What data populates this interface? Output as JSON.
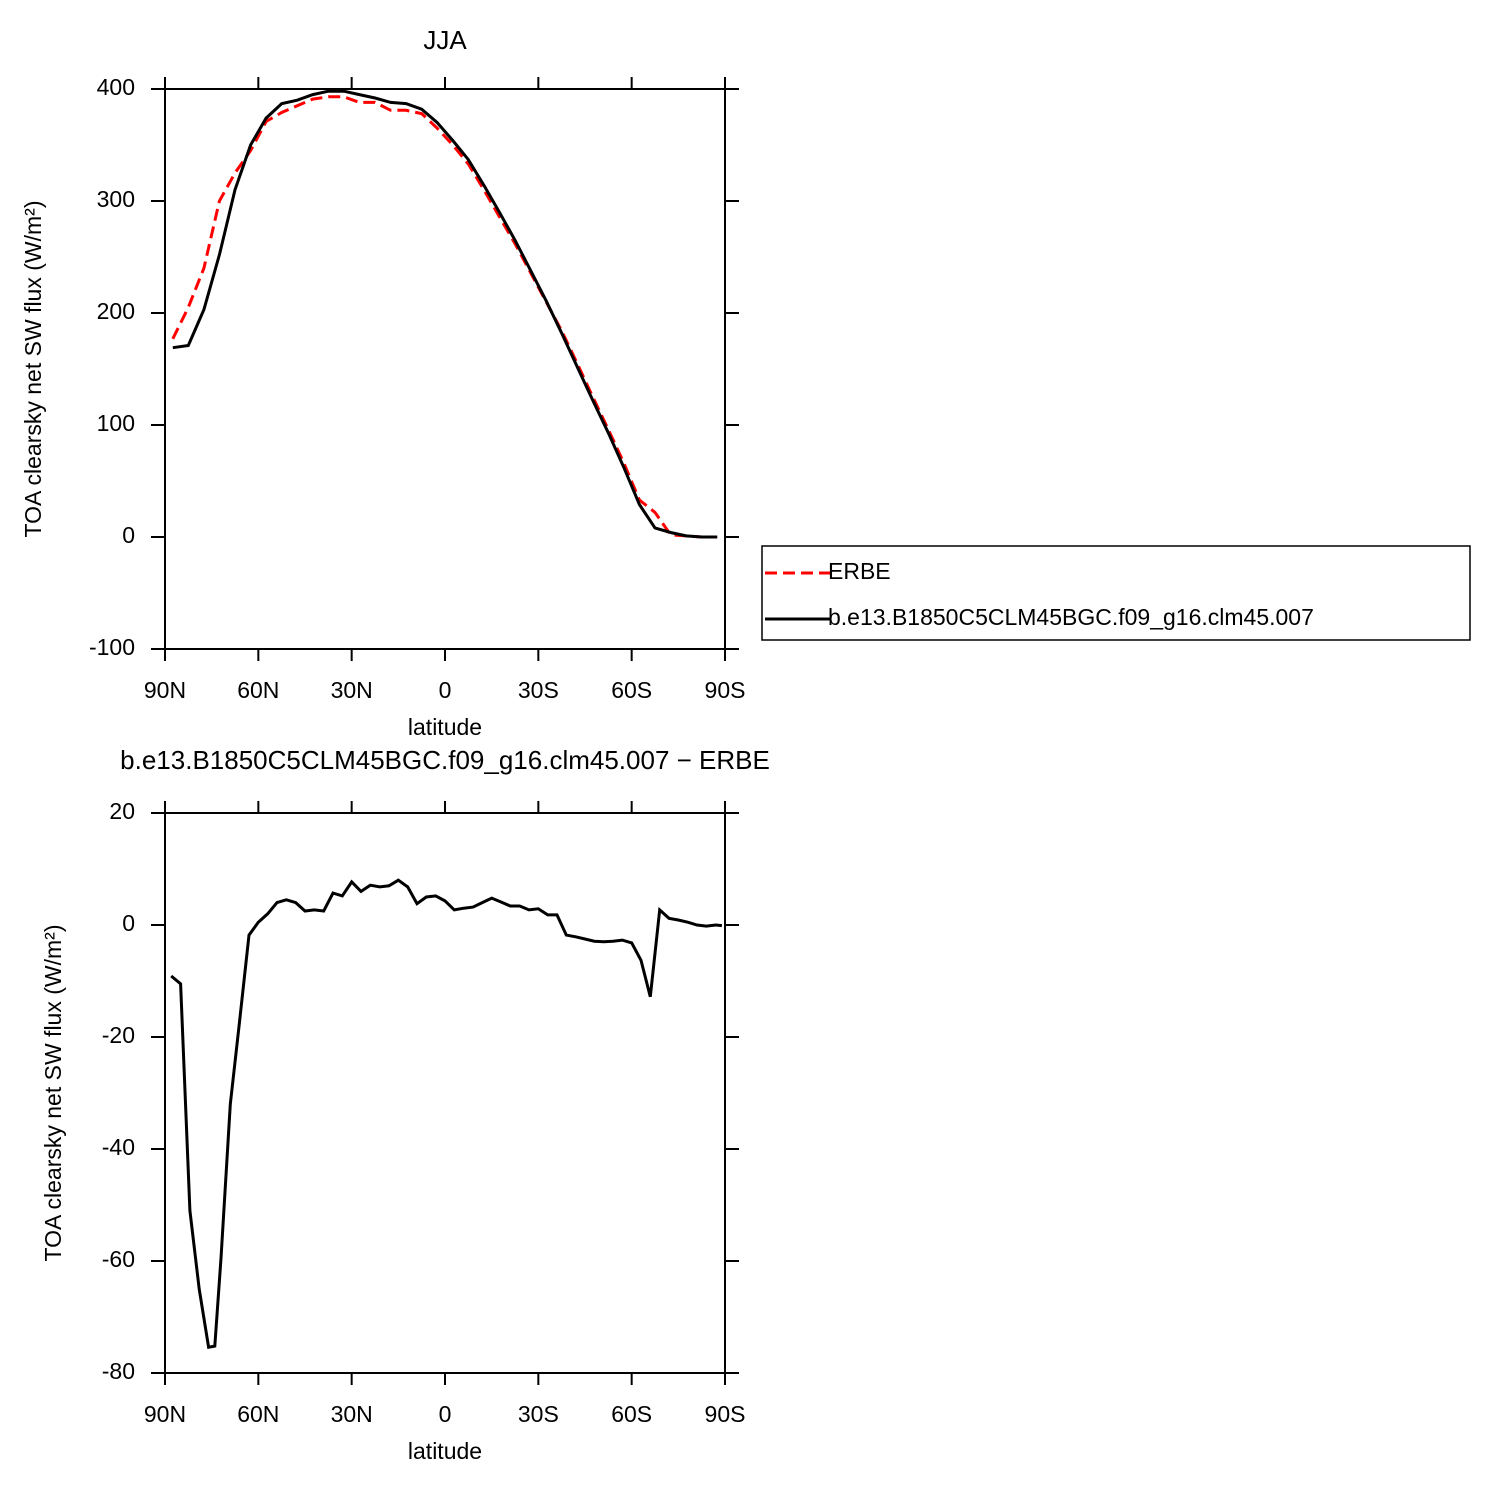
{
  "chart_data": [
    {
      "type": "line",
      "title": "JJA",
      "xlabel": "latitude",
      "ylabel": "TOA clearsky net SW flux (W/m²)",
      "xlim": [
        90,
        -90
      ],
      "xticks": [
        {
          "value": 90,
          "label": "90N"
        },
        {
          "value": 60,
          "label": "60N"
        },
        {
          "value": 30,
          "label": "30N"
        },
        0,
        {
          "value": -30,
          "label": "30S"
        },
        {
          "value": -60,
          "label": "60S"
        },
        {
          "value": -90,
          "label": "90S"
        }
      ],
      "ylim": [
        -100,
        400
      ],
      "yticks": [
        -100,
        0,
        100,
        200,
        300,
        400
      ],
      "legend": "right",
      "x": [
        87.5,
        82.5,
        77.5,
        72.5,
        67.5,
        62.5,
        57.5,
        52.5,
        47.5,
        42.5,
        37.5,
        32.5,
        27.5,
        22.5,
        17.5,
        12.5,
        7.5,
        2.5,
        -2.5,
        -7.5,
        -12.5,
        -17.5,
        -22.5,
        -27.5,
        -32.5,
        -37.5,
        -42.5,
        -47.5,
        -52.5,
        -57.5,
        -62.5,
        -67.5,
        -72.5,
        -77.5,
        -82.5,
        -87.5
      ],
      "series": [
        {
          "name": "ERBE",
          "color": "#ff0000",
          "dashed": true,
          "values": [
            177,
            205,
            240,
            300,
            325,
            345,
            371,
            379,
            385,
            391,
            393,
            393,
            388,
            388,
            381,
            381,
            378,
            365,
            350,
            333,
            310,
            286,
            262,
            236,
            210,
            184,
            155,
            125,
            96,
            66,
            33,
            22,
            2,
            1,
            0,
            0
          ]
        },
        {
          "name": "b.e13.B1850C5CLM45BGC.f09_g16.clm45.007",
          "color": "#000000",
          "dashed": false,
          "values": [
            169,
            171,
            203,
            252,
            310,
            350,
            374,
            387,
            390,
            395,
            398,
            398,
            395,
            392,
            388,
            387,
            382,
            370,
            354,
            337,
            314,
            290,
            265,
            238,
            211,
            182,
            152,
            122,
            93,
            62,
            29,
            8,
            4,
            1,
            0,
            0
          ]
        }
      ]
    },
    {
      "type": "line",
      "title": "b.e13.B1850C5CLM45BGC.f09_g16.clm45.007 − ERBE",
      "xlabel": "latitude",
      "ylabel": "TOA clearsky net SW flux (W/m²)",
      "xlim": [
        90,
        -90
      ],
      "xticks": [
        {
          "value": 90,
          "label": "90N"
        },
        {
          "value": 60,
          "label": "60N"
        },
        {
          "value": 30,
          "label": "30N"
        },
        0,
        {
          "value": -30,
          "label": "30S"
        },
        {
          "value": -60,
          "label": "60S"
        },
        {
          "value": -90,
          "label": "90S"
        }
      ],
      "ylim": [
        -80,
        20
      ],
      "yticks": [
        -80,
        -60,
        -40,
        -20,
        0,
        20
      ],
      "color": "#000000",
      "x": [
        88,
        85,
        82,
        79,
        76,
        74,
        72,
        69,
        66,
        63,
        60,
        57,
        54,
        51,
        48,
        45,
        42,
        39,
        36,
        33,
        30,
        27,
        24,
        21,
        18,
        15,
        12,
        9,
        6,
        3,
        0,
        -3,
        -6,
        -9,
        -12,
        -15,
        -18,
        -21,
        -24,
        -27,
        -30,
        -33,
        -36,
        -39,
        -42,
        -45,
        -48,
        -51,
        -54,
        -57,
        -60,
        -63,
        -66,
        -69,
        -72,
        -75,
        -78,
        -81,
        -84,
        -87,
        -89
      ],
      "values": [
        -9.1,
        -10.5,
        -51,
        -65,
        -75.4,
        -75.2,
        -59.5,
        -32,
        -17,
        -1.8,
        0.5,
        2,
        4,
        4.5,
        4,
        2.5,
        2.7,
        2.5,
        5.7,
        5.2,
        7.7,
        6,
        7.1,
        6.8,
        7,
        8,
        6.8,
        3.8,
        5,
        5.2,
        4.3,
        2.7,
        3,
        3.2,
        4,
        4.8,
        4.1,
        3.4,
        3.4,
        2.7,
        2.9,
        1.8,
        1.8,
        -1.8,
        -2.1,
        -2.5,
        -2.9,
        -3,
        -2.9,
        -2.7,
        -3.2,
        -6.3,
        -12.8,
        2.7,
        1.2,
        0.9,
        0.5,
        0,
        -0.2,
        0,
        -0.1
      ]
    }
  ]
}
